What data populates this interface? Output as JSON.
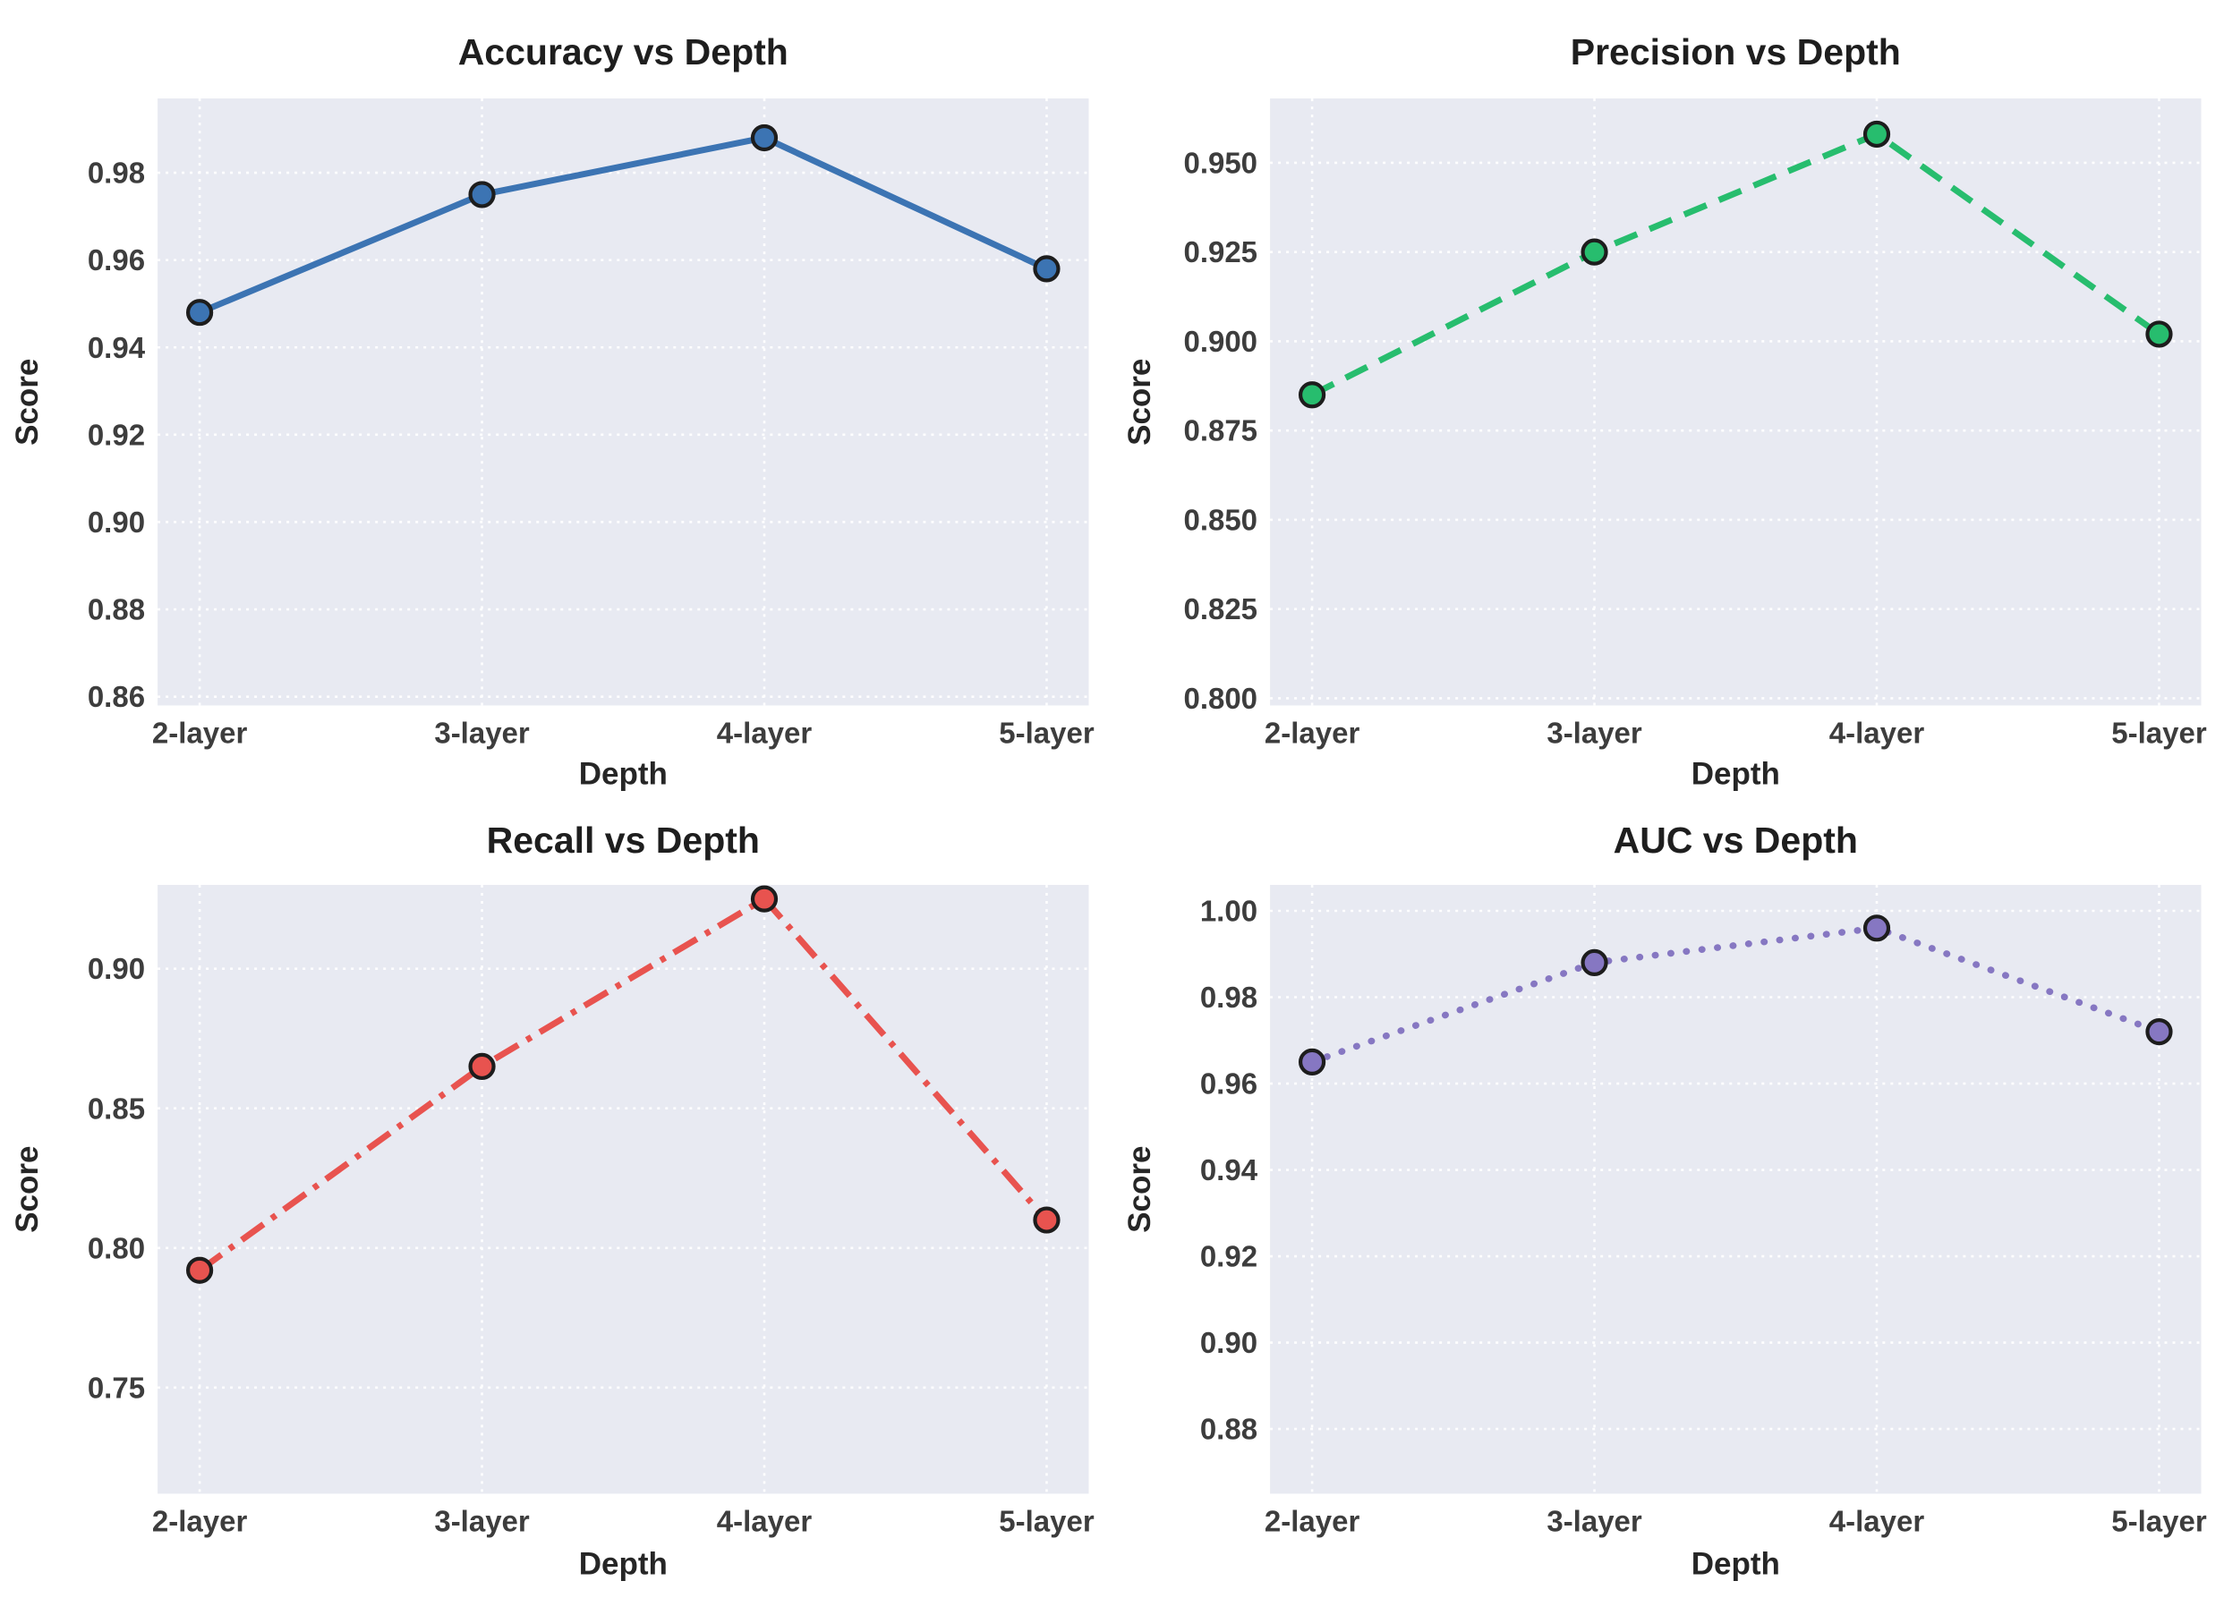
{
  "figure": {
    "background": "#ffffff",
    "rows": 2,
    "cols": 2
  },
  "styles": {
    "axes_background": "#e8eaf2",
    "grid_color": "#ffffff",
    "marker_edge_color": "#1d1d1d",
    "title_color": "#1e1e1e",
    "tick_color": "#3d3d3d"
  },
  "chart_data": [
    {
      "type": "line",
      "title": "Accuracy vs Depth",
      "xlabel": "Depth",
      "ylabel": "Score",
      "categories": [
        "2-layer",
        "3-layer",
        "4-layer",
        "5-layer"
      ],
      "values": [
        0.948,
        0.975,
        0.988,
        0.958
      ],
      "ylim": [
        0.858,
        0.997
      ],
      "ytick_values": [
        0.86,
        0.88,
        0.9,
        0.92,
        0.94,
        0.96,
        0.98
      ],
      "ytick_labels": [
        "0.86",
        "0.88",
        "0.90",
        "0.92",
        "0.94",
        "0.96",
        "0.98"
      ],
      "line_style": "solid",
      "marker": "circle",
      "color": "#3c74b3",
      "grid": true,
      "legend": "none"
    },
    {
      "type": "line",
      "title": "Precision vs Depth",
      "xlabel": "Depth",
      "ylabel": "Score",
      "categories": [
        "2-layer",
        "3-layer",
        "4-layer",
        "5-layer"
      ],
      "values": [
        0.885,
        0.925,
        0.958,
        0.902
      ],
      "ylim": [
        0.798,
        0.968
      ],
      "ytick_values": [
        0.8,
        0.825,
        0.85,
        0.875,
        0.9,
        0.925,
        0.95
      ],
      "ytick_labels": [
        "0.800",
        "0.825",
        "0.850",
        "0.875",
        "0.900",
        "0.925",
        "0.950"
      ],
      "line_style": "dashed",
      "marker": "circle",
      "color": "#27bd6e",
      "grid": true,
      "legend": "none"
    },
    {
      "type": "line",
      "title": "Recall vs Depth",
      "xlabel": "Depth",
      "ylabel": "Score",
      "categories": [
        "2-layer",
        "3-layer",
        "4-layer",
        "5-layer"
      ],
      "values": [
        0.792,
        0.865,
        0.925,
        0.81
      ],
      "ylim": [
        0.712,
        0.93
      ],
      "ytick_values": [
        0.75,
        0.8,
        0.85,
        0.9
      ],
      "ytick_labels": [
        "0.75",
        "0.80",
        "0.85",
        "0.90"
      ],
      "line_style": "dashdot",
      "marker": "circle",
      "color": "#e8534f",
      "grid": true,
      "legend": "none"
    },
    {
      "type": "line",
      "title": "AUC vs Depth",
      "xlabel": "Depth",
      "ylabel": "Score",
      "categories": [
        "2-layer",
        "3-layer",
        "4-layer",
        "5-layer"
      ],
      "values": [
        0.965,
        0.988,
        0.996,
        0.972
      ],
      "ylim": [
        0.865,
        1.006
      ],
      "ytick_values": [
        0.88,
        0.9,
        0.92,
        0.94,
        0.96,
        0.98,
        1.0
      ],
      "ytick_labels": [
        "0.88",
        "0.90",
        "0.92",
        "0.94",
        "0.96",
        "0.98",
        "1.00"
      ],
      "line_style": "dotted",
      "marker": "circle",
      "color": "#8677c2",
      "grid": true,
      "legend": "none"
    }
  ]
}
